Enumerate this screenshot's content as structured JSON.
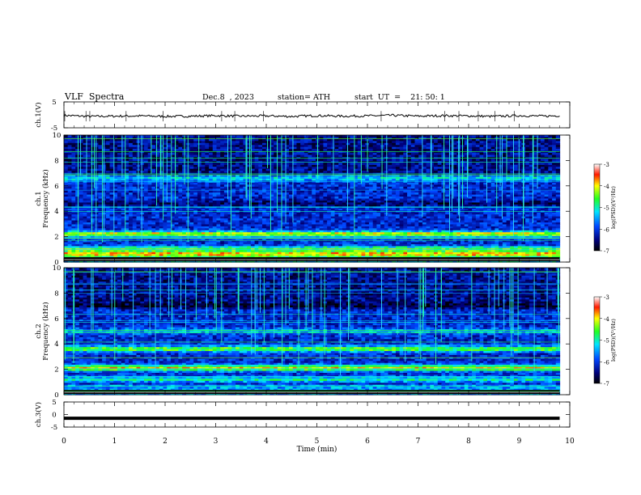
{
  "header": {
    "title": "VLF  Spectra",
    "date": "Dec.8  , 2023",
    "station": "station= ATH",
    "start": "start  UT  =    21: 50: 1"
  },
  "chart_data": [
    {
      "type": "line",
      "panel": "ch1-waveform",
      "ylabel": "ch.1(V)",
      "ylim": [
        -5,
        5
      ],
      "yticks": [
        5,
        -5
      ],
      "xlim": [
        0,
        10
      ],
      "x": [
        0,
        0.5,
        1,
        1.5,
        2,
        2.5,
        3,
        3.5,
        4,
        4.5,
        5,
        5.5,
        6,
        6.5,
        7,
        7.5,
        8,
        8.5,
        9,
        9.5,
        9.8
      ],
      "values": [
        -0.2,
        -0.6,
        -0.5,
        -0.4,
        -0.6,
        -0.5,
        -0.3,
        -0.5,
        -0.4,
        -0.6,
        -0.3,
        -0.5,
        -0.4,
        -0.2,
        -0.5,
        -0.3,
        -0.4,
        -0.6,
        -0.3,
        -0.5,
        -0.3
      ],
      "color": "#000000"
    },
    {
      "type": "heatmap",
      "panel": "ch1-spectrogram",
      "ylabel": "ch.1\nFrequency (kHz)",
      "ylim": [
        0,
        10
      ],
      "yticks": [
        0,
        2,
        4,
        6,
        8,
        10
      ],
      "xlim": [
        0,
        10
      ],
      "data_end_min": 9.8,
      "colorbar": {
        "label": "log(PSD)(V²/Hz)",
        "range": [
          -7,
          -3
        ],
        "ticks": [
          -3,
          -4,
          -5,
          -6,
          -7
        ]
      },
      "bands_khz": [
        {
          "f": 2.2,
          "level": -4.0
        },
        {
          "f": 1.0,
          "level": -4.3
        },
        {
          "f": 0.6,
          "level": -3.6
        },
        {
          "f": 0.3,
          "level": -4.8
        },
        {
          "f": 4.6,
          "level": -6.6
        },
        {
          "f": 6.6,
          "level": -5.2
        }
      ]
    },
    {
      "type": "heatmap",
      "panel": "ch2-spectrogram",
      "ylabel": "ch.2\nFrequency (kHz)",
      "ylim": [
        0,
        10
      ],
      "yticks": [
        0,
        2,
        4,
        6,
        8,
        10
      ],
      "xlim": [
        0,
        10
      ],
      "data_end_min": 9.8,
      "colorbar": {
        "label": "log(PSD)(V²/Hz)",
        "range": [
          -7,
          -3
        ],
        "ticks": [
          -3,
          -4,
          -5,
          -6,
          -7
        ]
      },
      "bands_khz": [
        {
          "f": 2.1,
          "level": -4.0
        },
        {
          "f": 3.6,
          "level": -4.5
        },
        {
          "f": 1.2,
          "level": -5.0
        },
        {
          "f": 5.0,
          "level": -5.4
        },
        {
          "f": 7.0,
          "level": -6.8
        }
      ]
    },
    {
      "type": "line",
      "panel": "ch3-waveform",
      "ylabel": "ch.3(V)",
      "ylim": [
        -5,
        5
      ],
      "yticks": [
        5,
        0,
        -5
      ],
      "xlim": [
        0,
        10
      ],
      "x": [
        0,
        9.8
      ],
      "values": [
        -1.5,
        -1.5
      ],
      "color": "#000000"
    }
  ],
  "xaxis": {
    "label": "Time  (min)",
    "ticks": [
      0,
      1,
      2,
      3,
      4,
      5,
      6,
      7,
      8,
      9,
      10
    ]
  }
}
